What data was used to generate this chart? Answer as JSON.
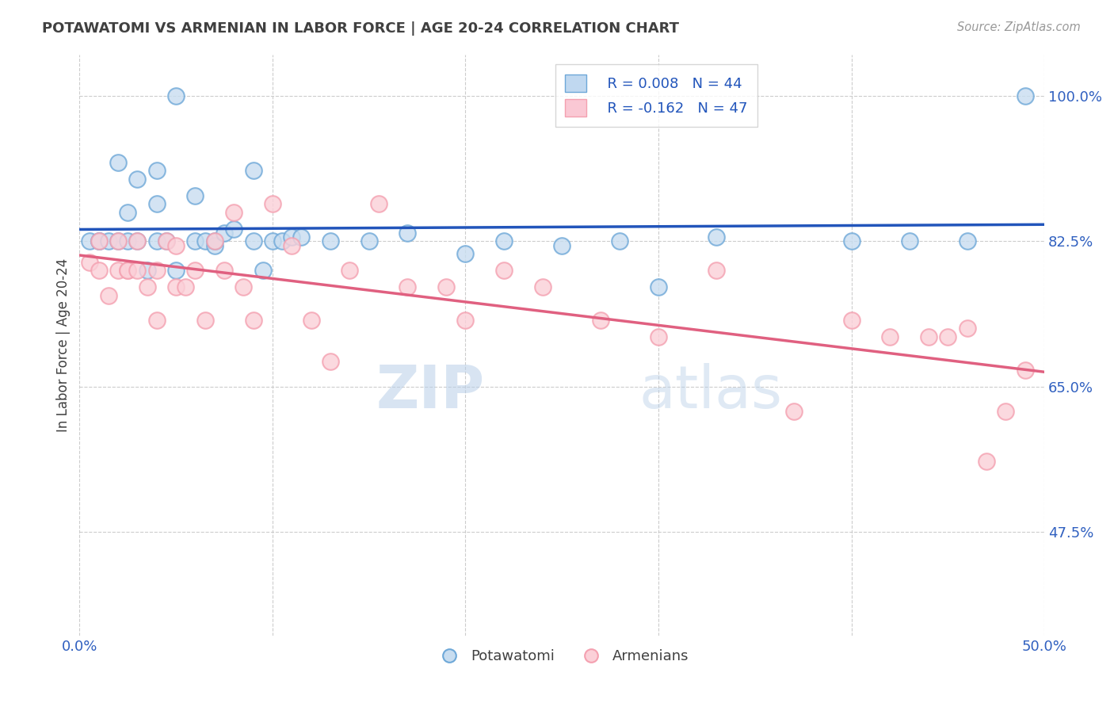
{
  "title": "POTAWATOMI VS ARMENIAN IN LABOR FORCE | AGE 20-24 CORRELATION CHART",
  "source_text": "Source: ZipAtlas.com",
  "ylabel": "In Labor Force | Age 20-24",
  "xlim": [
    0.0,
    0.5
  ],
  "ylim": [
    0.35,
    1.05
  ],
  "yticks": [
    0.475,
    0.65,
    0.825,
    1.0
  ],
  "ytick_labels": [
    "47.5%",
    "65.0%",
    "82.5%",
    "100.0%"
  ],
  "legend_r_blue": "R = 0.008",
  "legend_n_blue": "N = 44",
  "legend_r_pink": "R = -0.162",
  "legend_n_pink": "N = 47",
  "blue_color": "#6ea8d8",
  "pink_color": "#f4a0b0",
  "trend_blue_color": "#2255bb",
  "trend_pink_color": "#e06080",
  "watermark_color": "#c8d8e8",
  "blue_scatter_x": [
    0.005,
    0.01,
    0.01,
    0.015,
    0.02,
    0.02,
    0.025,
    0.025,
    0.03,
    0.03,
    0.035,
    0.04,
    0.04,
    0.04,
    0.045,
    0.05,
    0.05,
    0.06,
    0.06,
    0.065,
    0.07,
    0.07,
    0.075,
    0.08,
    0.09,
    0.09,
    0.095,
    0.1,
    0.105,
    0.11,
    0.115,
    0.13,
    0.15,
    0.17,
    0.2,
    0.22,
    0.25,
    0.28,
    0.3,
    0.33,
    0.4,
    0.43,
    0.46,
    0.49
  ],
  "blue_scatter_y": [
    0.825,
    0.825,
    0.825,
    0.825,
    0.92,
    0.825,
    0.825,
    0.86,
    0.9,
    0.825,
    0.79,
    0.91,
    0.87,
    0.825,
    0.825,
    0.79,
    1.0,
    0.825,
    0.88,
    0.825,
    0.82,
    0.825,
    0.835,
    0.84,
    0.91,
    0.825,
    0.79,
    0.825,
    0.825,
    0.83,
    0.83,
    0.825,
    0.825,
    0.835,
    0.81,
    0.825,
    0.82,
    0.825,
    0.77,
    0.83,
    0.825,
    0.825,
    0.825,
    1.0
  ],
  "pink_scatter_x": [
    0.005,
    0.01,
    0.01,
    0.015,
    0.02,
    0.02,
    0.025,
    0.025,
    0.03,
    0.03,
    0.035,
    0.04,
    0.04,
    0.045,
    0.05,
    0.05,
    0.055,
    0.06,
    0.065,
    0.07,
    0.075,
    0.08,
    0.085,
    0.09,
    0.1,
    0.11,
    0.12,
    0.13,
    0.14,
    0.155,
    0.17,
    0.19,
    0.2,
    0.22,
    0.24,
    0.27,
    0.3,
    0.33,
    0.37,
    0.4,
    0.42,
    0.44,
    0.45,
    0.46,
    0.47,
    0.48,
    0.49
  ],
  "pink_scatter_y": [
    0.8,
    0.825,
    0.79,
    0.76,
    0.79,
    0.825,
    0.79,
    0.79,
    0.825,
    0.79,
    0.77,
    0.79,
    0.73,
    0.825,
    0.82,
    0.77,
    0.77,
    0.79,
    0.73,
    0.825,
    0.79,
    0.86,
    0.77,
    0.73,
    0.87,
    0.82,
    0.73,
    0.68,
    0.79,
    0.87,
    0.77,
    0.77,
    0.73,
    0.79,
    0.77,
    0.73,
    0.71,
    0.79,
    0.62,
    0.73,
    0.71,
    0.71,
    0.71,
    0.72,
    0.56,
    0.62,
    0.67
  ],
  "background_color": "#ffffff",
  "grid_color": "#cccccc",
  "title_color": "#404040",
  "tick_label_color": "#3060c0"
}
